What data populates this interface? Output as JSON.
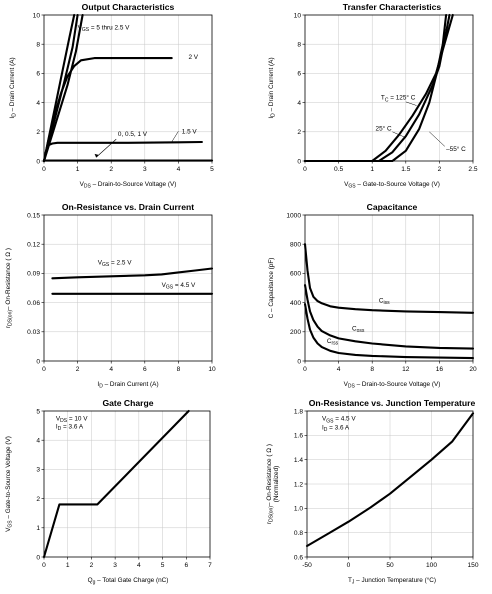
{
  "chart_data": [
    {
      "id": "output",
      "type": "line",
      "title": "Output Characteristics",
      "xlabel": "V<sub>DS</sub> – Drain-to-Source Voltage (V)",
      "ylabel": "I<sub>D</sub> – Drain Current (A)",
      "xlim": [
        0,
        5
      ],
      "ylim": [
        0,
        10
      ],
      "xticks": [
        0,
        1,
        2,
        3,
        4,
        5
      ],
      "yticks": [
        0,
        2,
        4,
        6,
        8,
        10
      ],
      "grid": true,
      "series": [
        {
          "name": "V<sub>GS</sub> = 5 thru 2.5 V",
          "x": [
            0,
            0.25,
            0.5,
            0.75,
            0.9
          ],
          "y": [
            0,
            2.8,
            5.6,
            8.4,
            10
          ]
        },
        {
          "name": "",
          "x": [
            0,
            0.3,
            0.6,
            0.85,
            1.0
          ],
          "y": [
            0,
            2.7,
            5.4,
            7.8,
            10
          ]
        },
        {
          "name": "",
          "x": [
            0,
            0.35,
            0.7,
            0.95,
            1.15
          ],
          "y": [
            0,
            2.6,
            5.2,
            7.5,
            10
          ]
        },
        {
          "name": "2 V",
          "x": [
            0,
            0.15,
            0.3,
            0.5,
            0.7,
            0.9,
            1.1,
            1.5,
            2.5,
            3.8
          ],
          "y": [
            0,
            1.6,
            3.0,
            4.6,
            5.8,
            6.5,
            6.9,
            7.05,
            7.05,
            7.05
          ]
        },
        {
          "name": "1.5 V",
          "x": [
            0,
            0.08,
            0.15,
            0.25,
            0.4,
            1.0,
            2.5,
            4.0,
            4.7
          ],
          "y": [
            0,
            0.8,
            1.1,
            1.2,
            1.25,
            1.25,
            1.25,
            1.28,
            1.3
          ]
        },
        {
          "name": "0, 0.5, 1 V",
          "x": [
            0,
            5
          ],
          "y": [
            0.03,
            0.03
          ]
        }
      ],
      "annotations": [
        {
          "text": "V<sub>GS</sub> = 5 thru 2.5 V",
          "x": 1.0,
          "y": 9.0
        },
        {
          "text": "2 V",
          "x": 4.3,
          "y": 7.0
        },
        {
          "text": "1.5 V",
          "x": 4.1,
          "y": 1.9
        },
        {
          "text": "0, 0.5, 1 V",
          "x": 2.2,
          "y": 1.7
        }
      ]
    },
    {
      "id": "transfer",
      "type": "line",
      "title": "Transfer Characteristics",
      "xlabel": "V<sub>GS</sub> – Gate-to-Source Voltage (V)",
      "ylabel": "I<sub>D</sub> – Drain Current (A)",
      "xlim": [
        0,
        2.5
      ],
      "ylim": [
        0,
        10
      ],
      "xticks": [
        0,
        0.5,
        1.0,
        1.5,
        2.0,
        2.5
      ],
      "yticks": [
        0,
        2,
        4,
        6,
        8,
        10
      ],
      "grid": true,
      "series": [
        {
          "name": "T<sub>C</sub> = 125° C",
          "x": [
            0,
            1.0,
            1.2,
            1.4,
            1.6,
            1.8,
            1.95,
            2.2
          ],
          "y": [
            0,
            0,
            0.7,
            1.8,
            3.1,
            4.6,
            6.0,
            10
          ]
        },
        {
          "name": "25° C",
          "x": [
            0,
            1.1,
            1.3,
            1.5,
            1.7,
            1.9,
            2.0,
            2.15
          ],
          "y": [
            0,
            0,
            0.6,
            1.7,
            3.2,
            5.2,
            6.5,
            10
          ]
        },
        {
          "name": "–55° C",
          "x": [
            0,
            1.3,
            1.5,
            1.7,
            1.85,
            1.95,
            2.05,
            2.1
          ],
          "y": [
            0,
            0,
            0.7,
            2.2,
            4.0,
            5.8,
            8.0,
            10
          ]
        }
      ],
      "annotations": [
        {
          "text": "T<sub>C</sub> = 125° C",
          "x": 1.13,
          "y": 4.2
        },
        {
          "text": "25° C",
          "x": 1.05,
          "y": 2.1
        },
        {
          "text": "–55° C",
          "x": 2.1,
          "y": 0.7
        }
      ]
    },
    {
      "id": "onres",
      "type": "line",
      "title": "On-Resistance vs. Drain Current",
      "xlabel": "I<sub>D</sub> – Drain Current (A)",
      "ylabel": "r<sub>DS(on)</sub>– On-Resistance ( Ω )",
      "xlim": [
        0,
        10
      ],
      "ylim": [
        0,
        0.15
      ],
      "xticks": [
        0,
        2,
        4,
        6,
        8,
        10
      ],
      "yticks": [
        0,
        0.03,
        0.06,
        0.09,
        0.12,
        0.15
      ],
      "yticklabels": [
        "0",
        "0.03",
        "0.06",
        "0.09",
        "0.12",
        "0.15"
      ],
      "grid": true,
      "series": [
        {
          "name": "V<sub>GS</sub> = 2.5 V",
          "x": [
            0.5,
            2,
            4,
            6,
            7,
            8,
            9,
            10
          ],
          "y": [
            0.085,
            0.086,
            0.087,
            0.088,
            0.089,
            0.091,
            0.093,
            0.095
          ]
        },
        {
          "name": "V<sub>GS</sub> = 4.5 V",
          "x": [
            0.5,
            10
          ],
          "y": [
            0.069,
            0.069
          ]
        }
      ],
      "annotations": [
        {
          "text": "V<sub>GS</sub> = 2.5 V",
          "x": 3.2,
          "y": 0.099
        },
        {
          "text": "V<sub>GS</sub> = 4.5 V",
          "x": 7.0,
          "y": 0.076
        }
      ]
    },
    {
      "id": "capacitance",
      "type": "line",
      "title": "Capacitance",
      "xlabel": "V<sub>DS</sub> – Drain-to-Source Voltage (V)",
      "ylabel": "C – Capacitance (pF)",
      "xlim": [
        0,
        20
      ],
      "ylim": [
        0,
        1000
      ],
      "xticks": [
        0,
        4,
        8,
        12,
        16,
        20
      ],
      "yticks": [
        0,
        200,
        400,
        600,
        800,
        1000
      ],
      "grid": true,
      "series": [
        {
          "name": "C<sub>iss</sub>",
          "x": [
            0,
            0.3,
            0.6,
            1,
            1.5,
            2,
            3,
            4,
            6,
            8,
            12,
            16,
            20
          ],
          "y": [
            800,
            620,
            500,
            440,
            410,
            395,
            375,
            365,
            355,
            348,
            340,
            335,
            330
          ]
        },
        {
          "name": "C<sub>oss</sub>",
          "x": [
            0,
            0.3,
            0.6,
            1,
            1.5,
            2,
            3,
            4,
            6,
            8,
            12,
            16,
            20
          ],
          "y": [
            520,
            420,
            340,
            280,
            235,
            205,
            175,
            155,
            135,
            120,
            100,
            90,
            85
          ]
        },
        {
          "name": "C<sub>rss</sub>",
          "x": [
            0,
            0.3,
            0.6,
            1,
            1.5,
            2,
            3,
            4,
            6,
            8,
            12,
            16,
            20
          ],
          "y": [
            390,
            290,
            215,
            160,
            120,
            95,
            70,
            55,
            42,
            35,
            27,
            23,
            20
          ]
        }
      ],
      "annotations": [
        {
          "text": "C<sub>iss</sub>",
          "x": 8.8,
          "y": 400
        },
        {
          "text": "C<sub>oss</sub>",
          "x": 5.6,
          "y": 210
        },
        {
          "text": "C<sub>rss</sub>",
          "x": 2.6,
          "y": 125
        }
      ]
    },
    {
      "id": "gatecharge",
      "type": "line",
      "title": "Gate Charge",
      "xlabel": "Q<sub>g</sub> – Total Gate Charge (nC)",
      "ylabel": "V<sub>GS</sub> – Gate-to-Source Voltage (V)",
      "xlim": [
        0,
        7
      ],
      "ylim": [
        0,
        5
      ],
      "xticks": [
        0,
        1,
        2,
        3,
        4,
        5,
        6,
        7
      ],
      "yticks": [
        0,
        1,
        2,
        3,
        4,
        5
      ],
      "grid": true,
      "series": [
        {
          "name": "",
          "x": [
            0,
            0.65,
            2.25,
            6.1
          ],
          "y": [
            0,
            1.8,
            1.8,
            5
          ]
        }
      ],
      "annotations": [
        {
          "text": "V<sub>DS</sub> = 10 V",
          "x": 0.5,
          "y": 4.68
        },
        {
          "text": "I<sub>D</sub> = 3.6 A",
          "x": 0.5,
          "y": 4.4
        }
      ]
    },
    {
      "id": "onrestemp",
      "type": "line",
      "title": "On-Resistance vs. Junction Temperature",
      "xlabel": "T<sub>J</sub> – Junction Temperature (°C)",
      "ylabel": "r<sub>DS(on)</sub>– On-Resistance ( Ω )|(Normalized)",
      "xlim": [
        -50,
        150
      ],
      "ylim": [
        0.6,
        1.8
      ],
      "xticks": [
        -50,
        0,
        50,
        100,
        150
      ],
      "yticks": [
        0.6,
        0.8,
        1.0,
        1.2,
        1.4,
        1.6,
        1.8
      ],
      "yticklabels": [
        "0.6",
        "0.8",
        "1.0",
        "1.2",
        "1.4",
        "1.6",
        "1.8"
      ],
      "grid": true,
      "series": [
        {
          "name": "",
          "x": [
            -50,
            -25,
            0,
            25,
            50,
            75,
            100,
            125,
            150
          ],
          "y": [
            0.69,
            0.79,
            0.89,
            1.0,
            1.12,
            1.26,
            1.4,
            1.55,
            1.78
          ]
        }
      ],
      "annotations": [
        {
          "text": "V<sub>GS</sub> = 4.5 V",
          "x": -32,
          "y": 1.72
        },
        {
          "text": "I<sub>D</sub> = 3.6 A",
          "x": -32,
          "y": 1.65
        }
      ]
    }
  ]
}
